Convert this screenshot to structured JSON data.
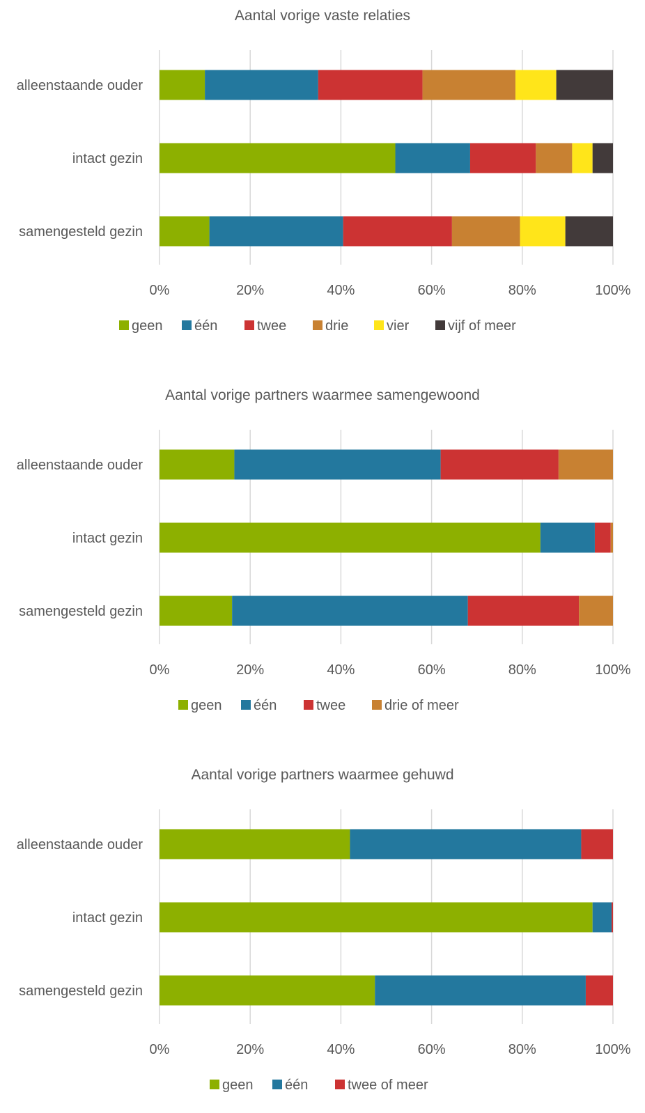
{
  "colors": {
    "geen": "#8db000",
    "een": "#23789e",
    "twee": "#cc3333",
    "drie": "#c88132",
    "vier": "#ffe51a",
    "vijf": "#423a3a"
  },
  "chart_data": [
    {
      "type": "bar",
      "orientation": "horizontal",
      "stacked": "percent",
      "title": "Aantal vorige vaste relaties",
      "categories": [
        "alleenstaande ouder",
        "intact gezin",
        "samengesteld gezin"
      ],
      "xlim": [
        0,
        100
      ],
      "ticks": [
        "0%",
        "20%",
        "40%",
        "60%",
        "80%",
        "100%"
      ],
      "grid": true,
      "legend": "bottom",
      "series": [
        {
          "name": "geen",
          "color": "#8db000",
          "values": [
            10,
            52,
            11
          ]
        },
        {
          "name": "één",
          "color": "#23789e",
          "values": [
            25,
            16.5,
            29.5
          ]
        },
        {
          "name": "twee",
          "color": "#cc3333",
          "values": [
            23,
            14.5,
            24
          ]
        },
        {
          "name": "drie",
          "color": "#c88132",
          "values": [
            20.5,
            8,
            15
          ]
        },
        {
          "name": "vier",
          "color": "#ffe51a",
          "values": [
            9,
            4.5,
            10
          ]
        },
        {
          "name": "vijf of meer",
          "color": "#423a3a",
          "values": [
            12.5,
            4.5,
            10.5
          ]
        }
      ]
    },
    {
      "type": "bar",
      "orientation": "horizontal",
      "stacked": "percent",
      "title": "Aantal vorige partners waarmee samengewoond",
      "categories": [
        "alleenstaande ouder",
        "intact gezin",
        "samengesteld gezin"
      ],
      "xlim": [
        0,
        100
      ],
      "ticks": [
        "0%",
        "20%",
        "40%",
        "60%",
        "80%",
        "100%"
      ],
      "grid": true,
      "legend": "bottom",
      "series": [
        {
          "name": "geen",
          "color": "#8db000",
          "values": [
            16.5,
            84,
            16
          ]
        },
        {
          "name": "één",
          "color": "#23789e",
          "values": [
            45.5,
            12,
            52
          ]
        },
        {
          "name": "twee",
          "color": "#cc3333",
          "values": [
            26,
            3.5,
            24.5
          ]
        },
        {
          "name": "drie of meer",
          "color": "#c88132",
          "values": [
            12,
            0.5,
            7.5
          ]
        }
      ]
    },
    {
      "type": "bar",
      "orientation": "horizontal",
      "stacked": "percent",
      "title": "Aantal vorige partners waarmee gehuwd",
      "categories": [
        "alleenstaande ouder",
        "intact gezin",
        "samengesteld gezin"
      ],
      "xlim": [
        0,
        100
      ],
      "ticks": [
        "0%",
        "20%",
        "40%",
        "60%",
        "80%",
        "100%"
      ],
      "grid": true,
      "legend": "bottom",
      "series": [
        {
          "name": "geen",
          "color": "#8db000",
          "values": [
            42,
            95.5,
            47.5
          ]
        },
        {
          "name": "één",
          "color": "#23789e",
          "values": [
            51,
            4.2,
            46.5
          ]
        },
        {
          "name": "twee of meer",
          "color": "#cc3333",
          "values": [
            7,
            0.3,
            6
          ]
        }
      ]
    }
  ]
}
